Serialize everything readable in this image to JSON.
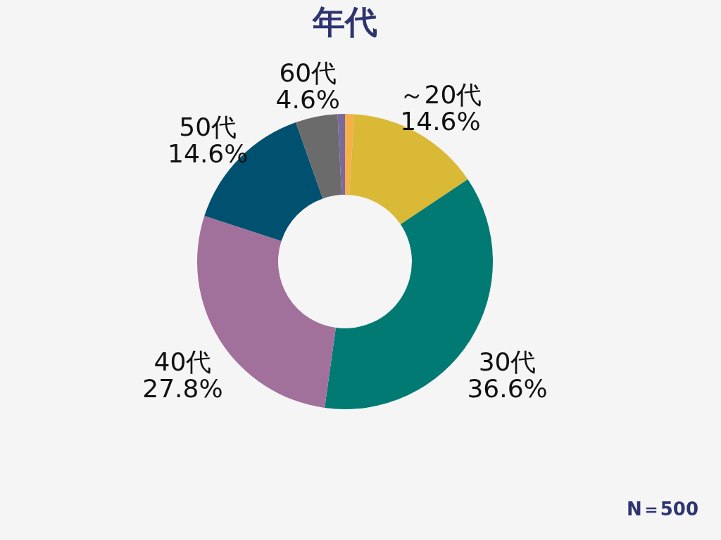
{
  "chart_data": {
    "type": "donut",
    "title": "年代",
    "categories": [
      null,
      "～20代",
      "30代",
      "40代",
      "50代",
      "60代",
      null
    ],
    "values": [
      1.0,
      14.6,
      36.6,
      27.8,
      14.6,
      4.6,
      0.8
    ],
    "value_labels": [
      null,
      "14.6%",
      "36.6%",
      "27.8%",
      "14.6%",
      "4.6%",
      null
    ],
    "colors": [
      "#f5b04a",
      "#d9b936",
      "#007a73",
      "#a2719b",
      "#00516f",
      "#6b6b6b",
      "#7b6a9e"
    ],
    "legend": false,
    "annotations": [
      "N＝500"
    ]
  }
}
